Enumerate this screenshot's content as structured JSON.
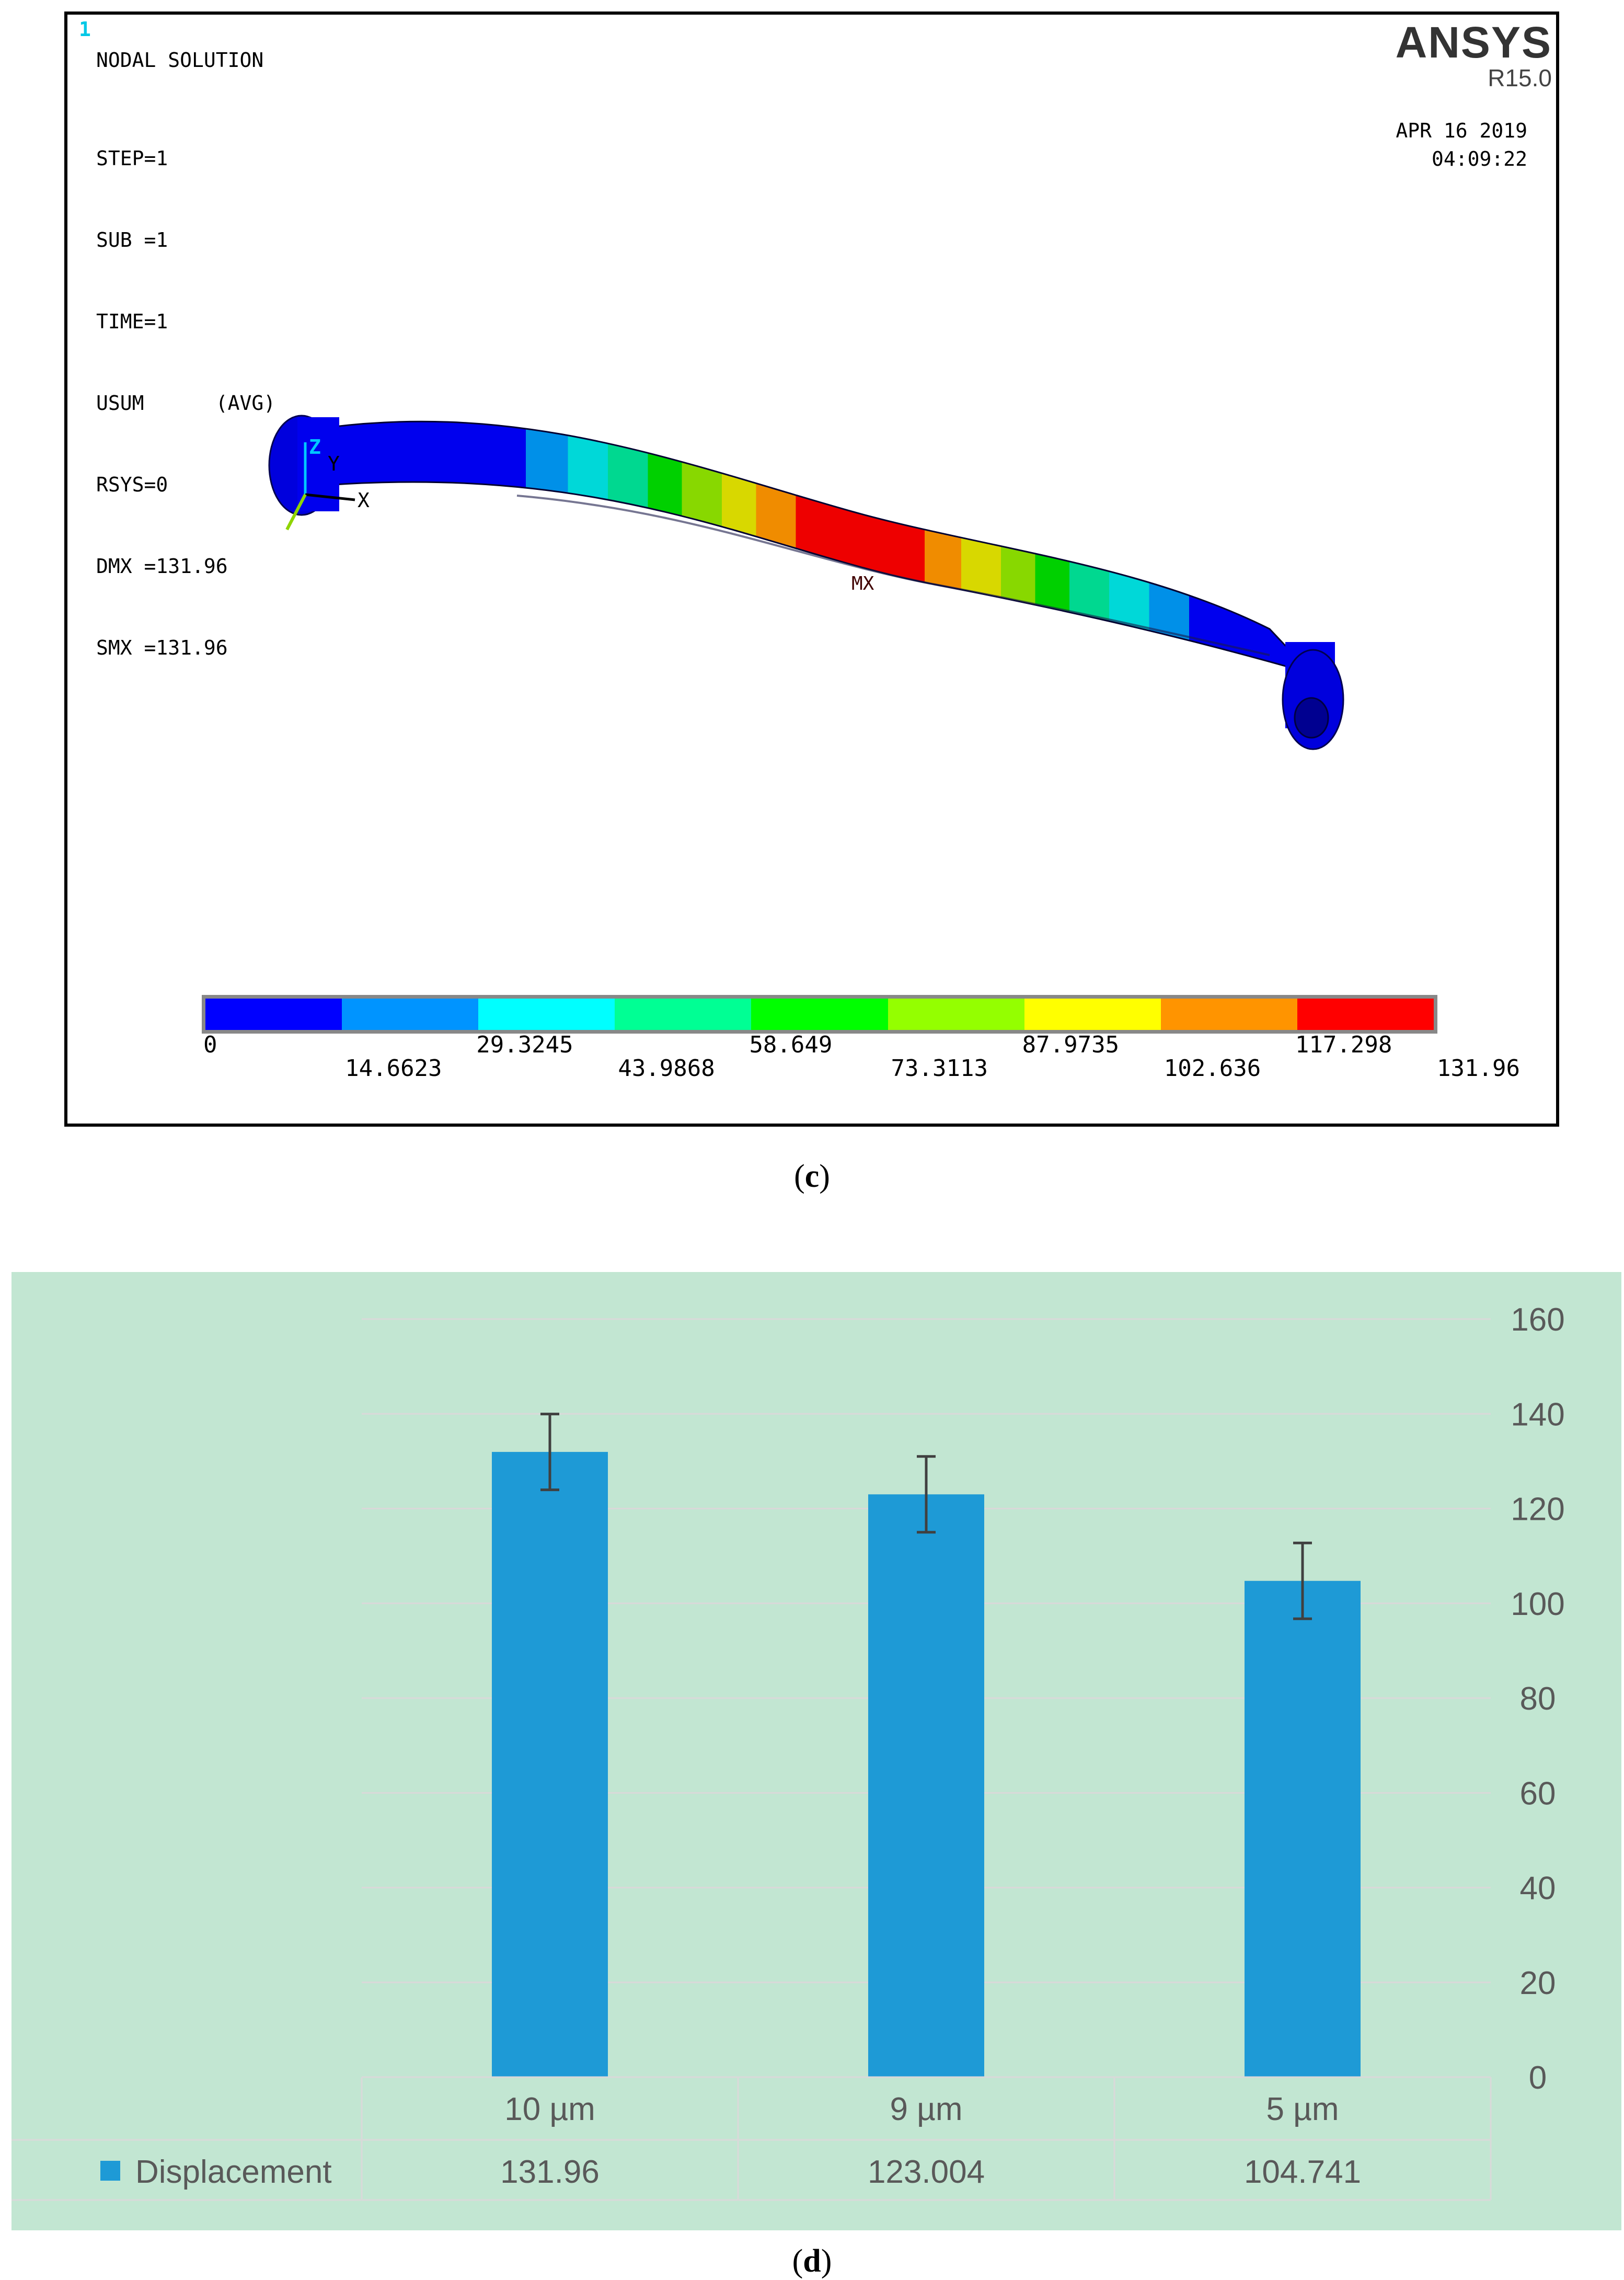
{
  "panel_c": {
    "panel_number": "1",
    "header": "NODAL SOLUTION",
    "info_lines": [
      "STEP=1",
      "SUB =1",
      "TIME=1",
      "USUM      (AVG)",
      "RSYS=0",
      "DMX =131.96",
      "SMX =131.96"
    ],
    "logo": "ANSYS",
    "version": "R15.0",
    "date": "APR 16 2019",
    "time": "04:09:22",
    "triad_labels": [
      "Z",
      "Y",
      "X"
    ],
    "max_marker": "MX",
    "legend_labels_top": [
      "0",
      "29.3245",
      "58.649",
      "87.9735",
      "117.298"
    ],
    "legend_labels_bottom": [
      "14.6623",
      "43.9868",
      "73.3113",
      "102.636",
      "131.96"
    ],
    "legend_colors": [
      "#0000ff",
      "#0094ff",
      "#00ffff",
      "#00ff94",
      "#00ff00",
      "#94ff00",
      "#ffff00",
      "#ff9400",
      "#ff0000"
    ],
    "caption_open": "(",
    "caption_letter": "c",
    "caption_close": ")"
  },
  "panel_d": {
    "caption_open": "(",
    "caption_letter": "d",
    "caption_close": ")",
    "legend_label": "Displacement",
    "colors": {
      "background": "#c2e6d2",
      "bar": "#1e9ad6",
      "grid": "#d9d9d9",
      "text": "#595959",
      "error": "#404040"
    }
  },
  "chart_data": {
    "type": "bar",
    "categories": [
      "10 µm",
      "9 µm",
      "5 µm"
    ],
    "series": [
      {
        "name": "Displacement",
        "values": [
          131.96,
          123.004,
          104.741
        ],
        "table_values": [
          "131.96",
          "123.004",
          "104.741"
        ],
        "error": [
          8,
          8,
          8
        ]
      }
    ],
    "ylim": [
      0,
      160
    ],
    "yticks": [
      0,
      20,
      40,
      60,
      80,
      100,
      120,
      140,
      160
    ],
    "y_axis_position": "right",
    "grid": true,
    "data_table": true
  }
}
